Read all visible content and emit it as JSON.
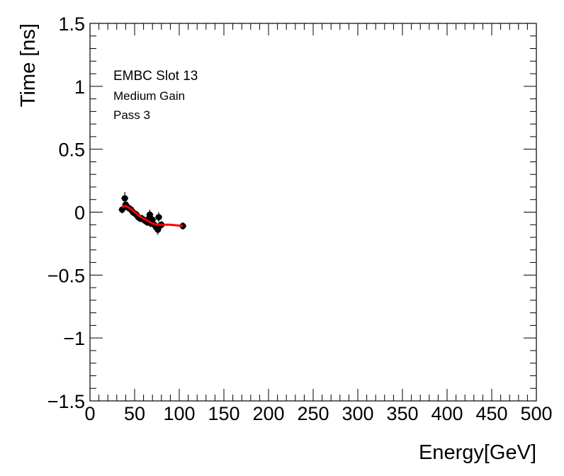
{
  "chart_data": {
    "type": "scatter",
    "xlabel": "Energy[GeV]",
    "ylabel": "Time [ns]",
    "xlim": [
      0,
      500
    ],
    "ylim": [
      -1.5,
      1.5
    ],
    "x_ticks": [
      0,
      50,
      100,
      150,
      200,
      250,
      300,
      350,
      400,
      450,
      500
    ],
    "x_tick_labels": [
      "0",
      "50",
      "100",
      "150",
      "200",
      "250",
      "300",
      "350",
      "400",
      "450",
      "500"
    ],
    "y_ticks": [
      1.5,
      1,
      0.5,
      0,
      -0.5,
      -1,
      -1.5
    ],
    "y_tick_labels": [
      "1.5",
      "1",
      "0.5",
      "0",
      "−0.5",
      "−1",
      "−1.5"
    ],
    "grid": false,
    "annotations": [
      "EMBC Slot 13",
      "Medium Gain",
      "Pass 3"
    ],
    "marker_color": "#000000",
    "fit_color": "#ff0000",
    "series": [
      {
        "kind": "points_with_errors",
        "x": [
          36,
          39,
          40,
          42,
          44,
          46,
          48,
          50,
          52,
          54,
          56,
          58,
          60,
          62,
          64,
          66,
          67,
          68,
          70,
          72,
          74,
          76,
          77,
          78,
          80,
          104
        ],
        "y": [
          0.02,
          0.11,
          0.06,
          0.04,
          0.03,
          0.02,
          0.0,
          -0.01,
          -0.02,
          -0.04,
          -0.05,
          -0.05,
          -0.06,
          -0.07,
          -0.08,
          -0.05,
          -0.02,
          -0.09,
          -0.06,
          -0.1,
          -0.12,
          -0.14,
          -0.04,
          -0.11,
          -0.1,
          -0.11
        ],
        "yerr": [
          0.03,
          0.05,
          0.04,
          0.03,
          0.03,
          0.03,
          0.03,
          0.03,
          0.03,
          0.03,
          0.03,
          0.03,
          0.03,
          0.03,
          0.03,
          0.03,
          0.04,
          0.03,
          0.03,
          0.03,
          0.03,
          0.04,
          0.04,
          0.03,
          0.03,
          0.03
        ]
      },
      {
        "kind": "fit_line",
        "x": [
          36,
          40,
          45,
          50,
          55,
          60,
          65,
          70,
          75,
          80,
          90,
          104
        ],
        "y": [
          0.04,
          0.05,
          0.03,
          0.0,
          -0.03,
          -0.05,
          -0.07,
          -0.09,
          -0.1,
          -0.1,
          -0.1,
          -0.11
        ]
      }
    ]
  }
}
